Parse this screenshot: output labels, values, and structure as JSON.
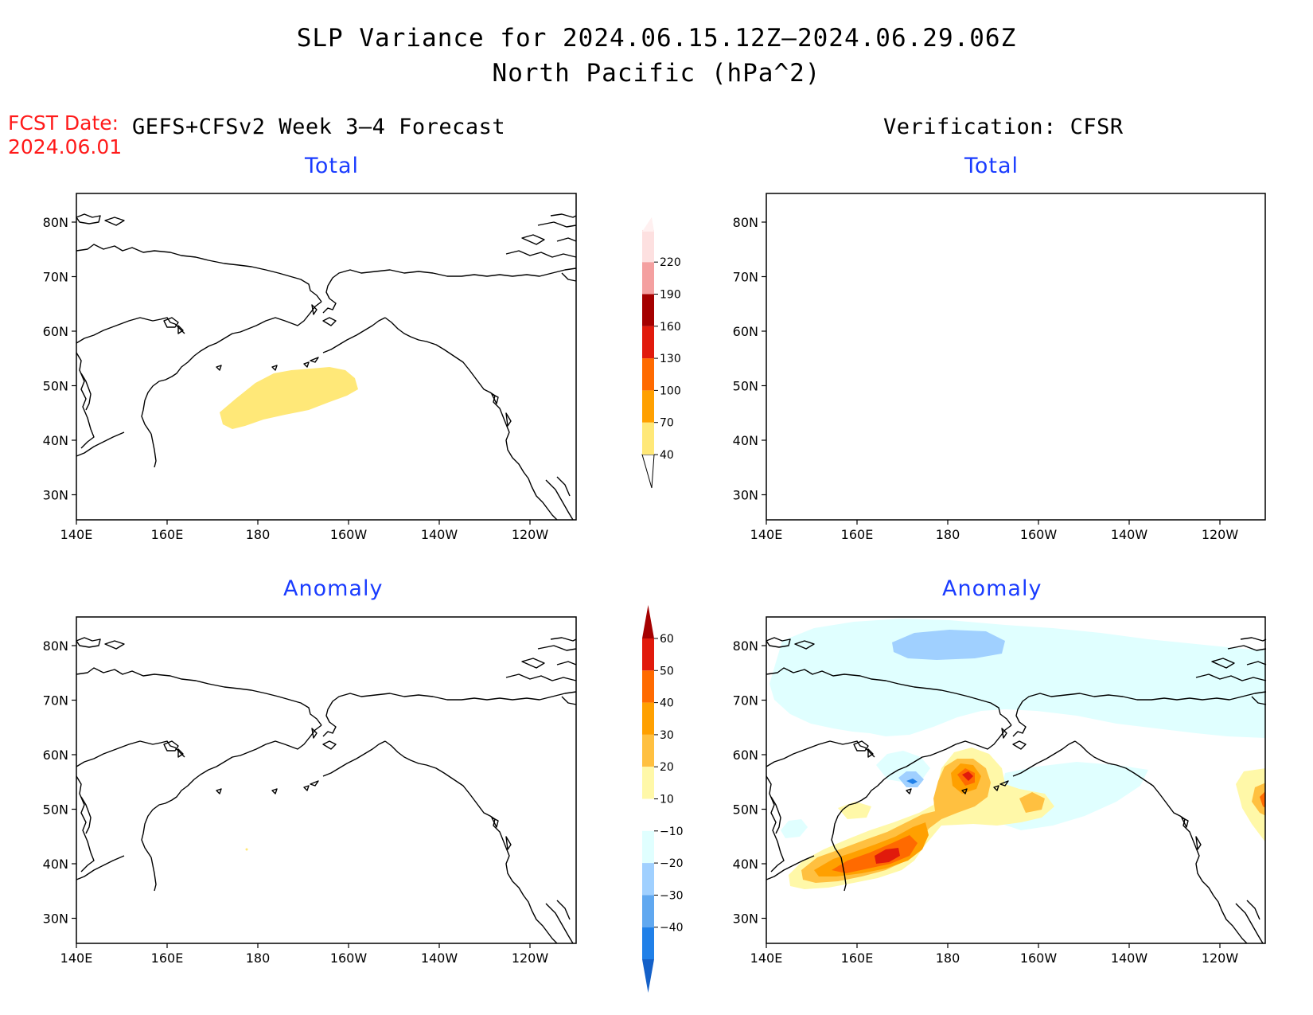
{
  "header": {
    "title_line1": "SLP Variance for 2024.06.15.12Z–2024.06.29.06Z",
    "title_line2": "North Pacific (hPa^2)",
    "fcst_label": "FCST Date:",
    "fcst_date": "2024.06.01",
    "left_heading": "GEFS+CFSv2 Week 3–4 Forecast",
    "right_heading": "Verification: CFSR"
  },
  "panels": {
    "top_left_title": "Total",
    "top_right_title": "Total",
    "bottom_left_title": "Anomaly",
    "bottom_right_title": "Anomaly"
  },
  "axes": {
    "lat_labels": [
      "80N",
      "70N",
      "60N",
      "50N",
      "40N",
      "30N"
    ],
    "lon_labels": [
      "140E",
      "160E",
      "180",
      "160W",
      "140W",
      "120W"
    ]
  },
  "colorbars": {
    "total": {
      "levels": [
        "40",
        "70",
        "100",
        "130",
        "160",
        "190",
        "220"
      ],
      "colors": [
        "#ffe878",
        "#ffa000",
        "#ff6a00",
        "#e11a0c",
        "#a50000",
        "#f4a0a0",
        "#fde0e0"
      ]
    },
    "anomaly": {
      "levels": [
        "60",
        "50",
        "40",
        "30",
        "20",
        "10",
        "−10",
        "−20",
        "−30",
        "−40"
      ],
      "colors_top_down": [
        "#a50000",
        "#e11a0c",
        "#ff6a00",
        "#ffa000",
        "#ffc040",
        "#fff8a8",
        "#ffffff",
        "#e0ffff",
        "#a0d0ff",
        "#60a8f0",
        "#2080e8",
        "#1460c8"
      ]
    }
  },
  "map_colors": {
    "yellow": "#ffe878",
    "orange": "#ffa000",
    "dark_orange": "#ff6a00",
    "red": "#e11a0c",
    "light_yellow": "#fff8a8",
    "light_orange": "#ffc040",
    "light_cyan": "#e0ffff",
    "light_blue": "#a0d0ff",
    "blue": "#2080e8"
  }
}
